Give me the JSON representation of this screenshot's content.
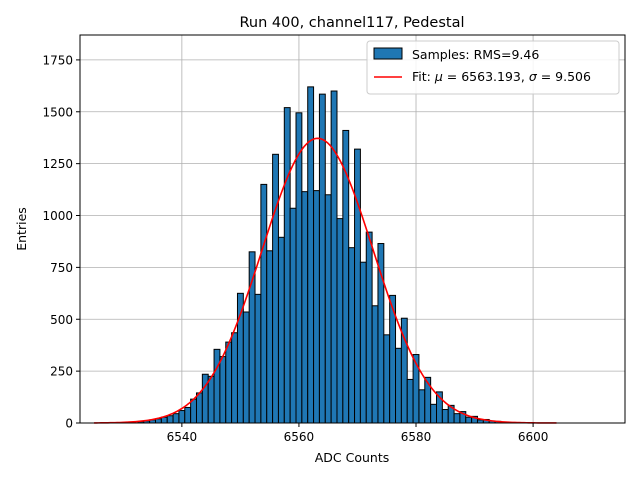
{
  "chart_data": {
    "type": "bar",
    "title": "Run 400, channel117, Pedestal",
    "xlabel": "ADC Counts",
    "ylabel": "Entries",
    "xlim": [
      6522.6,
      6615.7
    ],
    "ylim": [
      0,
      1870
    ],
    "xticks": [
      6540,
      6560,
      6580,
      6600
    ],
    "yticks": [
      0,
      250,
      500,
      750,
      1000,
      1250,
      1500,
      1750
    ],
    "grid": true,
    "legend_position": "top-right",
    "bin_width": 1,
    "series": [
      {
        "name": "Samples: RMS=9.46",
        "kind": "histogram",
        "color": "#1f77b4",
        "edge_color": "#000000",
        "x": [
          6533,
          6534,
          6535,
          6536,
          6537,
          6538,
          6539,
          6540,
          6541,
          6542,
          6543,
          6544,
          6545,
          6546,
          6547,
          6548,
          6549,
          6550,
          6551,
          6552,
          6553,
          6554,
          6555,
          6556,
          6557,
          6558,
          6559,
          6560,
          6561,
          6562,
          6563,
          6564,
          6565,
          6566,
          6567,
          6568,
          6569,
          6570,
          6571,
          6572,
          6573,
          6574,
          6575,
          6576,
          6577,
          6578,
          6579,
          6580,
          6581,
          6582,
          6583,
          6584,
          6585,
          6586,
          6587,
          6588,
          6589,
          6590,
          6591,
          6592,
          6593,
          6594,
          6595
        ],
        "values": [
          6,
          10,
          15,
          20,
          28,
          35,
          45,
          60,
          75,
          115,
          145,
          235,
          225,
          355,
          320,
          390,
          435,
          625,
          535,
          825,
          620,
          1150,
          830,
          1295,
          895,
          1520,
          1035,
          1495,
          1115,
          1620,
          1120,
          1585,
          1100,
          1600,
          985,
          1410,
          845,
          1320,
          775,
          920,
          565,
          865,
          425,
          615,
          360,
          505,
          210,
          330,
          160,
          220,
          90,
          150,
          65,
          85,
          45,
          55,
          28,
          32,
          15,
          17,
          10,
          8,
          4
        ]
      },
      {
        "name": "Fit: μ = 6563.193, σ = 9.506",
        "legend_label": {
          "prefix": "Fit: ",
          "mu": "μ",
          "mid": " = 6563.193, ",
          "sigma": "σ",
          "suffix": " = 9.506"
        },
        "kind": "gaussian-fit",
        "color": "#ff0000",
        "mu": 6563.193,
        "sigma": 9.506,
        "amplitude": 1372,
        "x_range": [
          6525,
          6604
        ]
      }
    ]
  }
}
